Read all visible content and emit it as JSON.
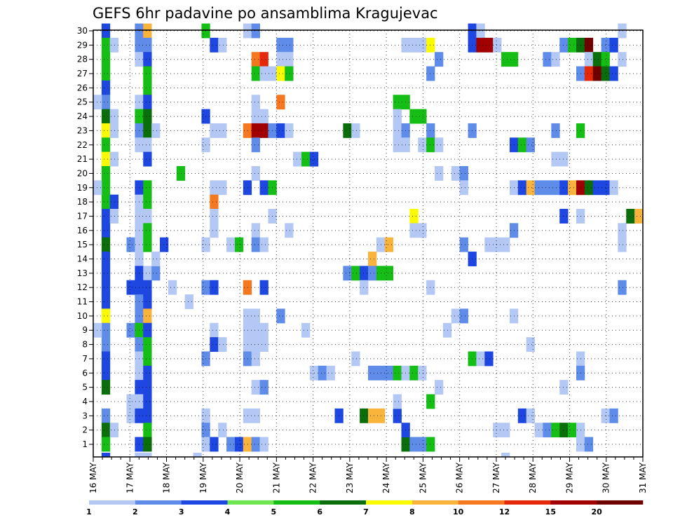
{
  "chart_data": {
    "type": "heatmap",
    "title": "GEFS 6hr padavine po ansamblima Kragujevac",
    "y_ticks": [
      "1",
      "2",
      "3",
      "4",
      "5",
      "6",
      "7",
      "8",
      "9",
      "10",
      "11",
      "12",
      "13",
      "14",
      "15",
      "16",
      "17",
      "18",
      "19",
      "20",
      "21",
      "22",
      "23",
      "24",
      "25",
      "26",
      "27",
      "28",
      "29",
      "30"
    ],
    "x_ticks": [
      "16 MAY",
      "17 MAY",
      "18 MAY",
      "19 MAY",
      "20 MAY",
      "21 MAY",
      "22 MAY",
      "23 MAY",
      "24 MAY",
      "25 MAY",
      "26 MAY",
      "27 MAY",
      "28 MAY",
      "29 MAY",
      "30 MAY",
      "31 MAY"
    ],
    "grid": true,
    "colorbar": {
      "labels": [
        "1",
        "2",
        "3",
        "4",
        "5",
        "6",
        "7",
        "8",
        "10",
        "12",
        "15",
        "20"
      ],
      "colors": [
        "#b4c8f5",
        "#5f8ce8",
        "#1e46e0",
        "#6ee650",
        "#14be14",
        "#0a6e0a",
        "#fafa00",
        "#fab43c",
        "#f5781e",
        "#e6280a",
        "#a00000",
        "#6e0000"
      ]
    },
    "cells": [
      [
        1,
        30,
        3
      ],
      [
        1,
        29,
        5
      ],
      [
        1,
        28,
        5
      ],
      [
        1,
        27,
        5
      ],
      [
        1,
        26,
        3
      ],
      [
        1,
        25,
        2
      ],
      [
        1,
        24,
        6
      ],
      [
        1,
        23,
        7
      ],
      [
        1,
        22,
        5
      ],
      [
        1,
        21,
        7
      ],
      [
        1,
        20,
        5
      ],
      [
        1,
        19,
        5
      ],
      [
        1,
        18,
        5
      ],
      [
        1,
        17,
        3
      ],
      [
        1,
        16,
        3
      ],
      [
        1,
        15,
        6
      ],
      [
        1,
        14,
        3
      ],
      [
        1,
        13,
        3
      ],
      [
        1,
        12,
        3
      ],
      [
        1,
        11,
        3
      ],
      [
        1,
        10,
        7
      ],
      [
        1,
        9,
        2
      ],
      [
        1,
        8,
        2
      ],
      [
        1,
        7,
        3
      ],
      [
        1,
        6,
        3
      ],
      [
        1,
        5,
        6
      ],
      [
        1,
        3,
        2
      ],
      [
        1,
        2,
        6
      ],
      [
        1,
        1,
        5
      ],
      [
        1,
        0,
        3
      ],
      [
        0,
        25,
        1
      ],
      [
        0,
        19,
        1
      ],
      [
        0,
        9,
        1
      ],
      [
        2,
        29,
        1
      ],
      [
        2,
        24,
        1
      ],
      [
        2,
        23,
        1
      ],
      [
        2,
        21,
        1
      ],
      [
        2,
        18,
        3
      ],
      [
        2,
        17,
        1
      ],
      [
        2,
        2,
        1
      ],
      [
        4,
        15,
        2
      ],
      [
        4,
        9,
        2
      ],
      [
        4,
        4,
        1
      ],
      [
        4,
        3,
        1
      ],
      [
        4,
        12,
        3
      ],
      [
        5,
        30,
        2
      ],
      [
        5,
        29,
        2
      ],
      [
        5,
        28,
        1
      ],
      [
        5,
        25,
        1
      ],
      [
        5,
        24,
        5
      ],
      [
        5,
        23,
        2
      ],
      [
        5,
        22,
        1
      ],
      [
        5,
        19,
        3
      ],
      [
        5,
        18,
        1
      ],
      [
        5,
        17,
        1
      ],
      [
        5,
        16,
        1
      ],
      [
        5,
        15,
        1
      ],
      [
        5,
        14,
        1
      ],
      [
        5,
        13,
        3
      ],
      [
        5,
        12,
        3
      ],
      [
        5,
        11,
        2
      ],
      [
        5,
        10,
        2
      ],
      [
        5,
        9,
        5
      ],
      [
        5,
        8,
        2
      ],
      [
        5,
        7,
        1
      ],
      [
        5,
        6,
        1
      ],
      [
        5,
        5,
        3
      ],
      [
        5,
        4,
        1
      ],
      [
        5,
        3,
        3
      ],
      [
        5,
        1,
        3
      ],
      [
        5,
        0,
        1
      ],
      [
        6,
        30,
        8
      ],
      [
        6,
        29,
        2
      ],
      [
        6,
        28,
        3
      ],
      [
        6,
        27,
        5
      ],
      [
        6,
        26,
        5
      ],
      [
        6,
        25,
        3
      ],
      [
        6,
        24,
        6
      ],
      [
        6,
        23,
        6
      ],
      [
        6,
        22,
        1
      ],
      [
        6,
        21,
        3
      ],
      [
        6,
        19,
        5
      ],
      [
        6,
        18,
        5
      ],
      [
        6,
        17,
        1
      ],
      [
        6,
        16,
        5
      ],
      [
        6,
        15,
        5
      ],
      [
        6,
        13,
        1
      ],
      [
        6,
        12,
        3
      ],
      [
        6,
        11,
        3
      ],
      [
        6,
        10,
        8
      ],
      [
        6,
        9,
        3
      ],
      [
        6,
        8,
        5
      ],
      [
        6,
        7,
        5
      ],
      [
        6,
        6,
        3
      ],
      [
        6,
        5,
        3
      ],
      [
        6,
        4,
        3
      ],
      [
        6,
        3,
        3
      ],
      [
        6,
        2,
        5
      ],
      [
        6,
        1,
        6
      ],
      [
        6,
        0,
        1
      ],
      [
        7,
        23,
        1
      ],
      [
        7,
        13,
        2
      ],
      [
        7,
        14,
        1
      ],
      [
        8,
        15,
        3
      ],
      [
        9,
        12,
        1
      ],
      [
        10,
        20,
        5
      ],
      [
        11,
        11,
        1
      ],
      [
        12,
        0,
        1
      ],
      [
        13,
        30,
        5
      ],
      [
        13,
        24,
        3
      ],
      [
        13,
        22,
        1
      ],
      [
        13,
        15,
        1
      ],
      [
        13,
        12,
        2
      ],
      [
        13,
        7,
        2
      ],
      [
        13,
        3,
        1
      ],
      [
        13,
        2,
        2
      ],
      [
        13,
        1,
        1
      ],
      [
        14,
        29,
        3
      ],
      [
        14,
        23,
        1
      ],
      [
        14,
        19,
        1
      ],
      [
        14,
        18,
        9
      ],
      [
        14,
        17,
        1
      ],
      [
        14,
        16,
        1
      ],
      [
        14,
        12,
        3
      ],
      [
        14,
        9,
        1
      ],
      [
        14,
        8,
        3
      ],
      [
        14,
        1,
        3
      ],
      [
        15,
        29,
        1
      ],
      [
        15,
        23,
        1
      ],
      [
        15,
        19,
        1
      ],
      [
        15,
        8,
        1
      ],
      [
        15,
        2,
        1
      ],
      [
        16,
        1,
        2
      ],
      [
        16,
        15,
        1
      ],
      [
        17,
        1,
        3
      ],
      [
        17,
        15,
        5
      ],
      [
        18,
        30,
        1
      ],
      [
        18,
        23,
        9
      ],
      [
        18,
        19,
        3
      ],
      [
        18,
        12,
        9
      ],
      [
        18,
        10,
        1
      ],
      [
        18,
        9,
        1
      ],
      [
        18,
        8,
        1
      ],
      [
        18,
        7,
        2
      ],
      [
        18,
        3,
        1
      ],
      [
        18,
        1,
        8
      ],
      [
        19,
        30,
        2
      ],
      [
        19,
        28,
        9
      ],
      [
        19,
        27,
        5
      ],
      [
        19,
        25,
        1
      ],
      [
        19,
        24,
        1
      ],
      [
        19,
        23,
        11
      ],
      [
        19,
        22,
        2
      ],
      [
        19,
        20,
        1
      ],
      [
        19,
        16,
        1
      ],
      [
        19,
        15,
        2
      ],
      [
        19,
        10,
        1
      ],
      [
        19,
        9,
        1
      ],
      [
        19,
        8,
        1
      ],
      [
        19,
        7,
        1
      ],
      [
        19,
        5,
        1
      ],
      [
        19,
        3,
        1
      ],
      [
        19,
        1,
        2
      ],
      [
        20,
        28,
        10
      ],
      [
        20,
        27,
        1
      ],
      [
        20,
        24,
        1
      ],
      [
        20,
        23,
        11
      ],
      [
        20,
        19,
        3
      ],
      [
        20,
        15,
        1
      ],
      [
        20,
        12,
        3
      ],
      [
        20,
        9,
        1
      ],
      [
        20,
        8,
        1
      ],
      [
        20,
        5,
        2
      ],
      [
        20,
        1,
        1
      ],
      [
        21,
        27,
        1
      ],
      [
        21,
        23,
        2
      ],
      [
        21,
        19,
        5
      ],
      [
        21,
        17,
        1
      ],
      [
        22,
        29,
        2
      ],
      [
        22,
        28,
        1
      ],
      [
        22,
        27,
        7
      ],
      [
        22,
        25,
        9
      ],
      [
        22,
        23,
        3
      ],
      [
        22,
        10,
        2
      ],
      [
        23,
        29,
        2
      ],
      [
        23,
        28,
        1
      ],
      [
        23,
        27,
        5
      ],
      [
        23,
        23,
        1
      ],
      [
        23,
        16,
        1
      ],
      [
        24,
        21,
        1
      ],
      [
        25,
        21,
        5
      ],
      [
        25,
        9,
        1
      ],
      [
        26,
        21,
        3
      ],
      [
        26,
        6,
        1
      ],
      [
        27,
        6,
        2
      ],
      [
        28,
        6,
        1
      ],
      [
        29,
        3,
        3
      ],
      [
        30,
        23,
        6
      ],
      [
        30,
        13,
        2
      ],
      [
        31,
        23,
        1
      ],
      [
        31,
        13,
        5
      ],
      [
        31,
        7,
        1
      ],
      [
        32,
        13,
        3
      ],
      [
        32,
        12,
        1
      ],
      [
        32,
        3,
        6
      ],
      [
        33,
        14,
        8
      ],
      [
        33,
        13,
        2
      ],
      [
        33,
        3,
        8
      ],
      [
        33,
        6,
        2
      ],
      [
        34,
        15,
        1
      ],
      [
        34,
        13,
        5
      ],
      [
        34,
        3,
        8
      ],
      [
        34,
        6,
        2
      ],
      [
        35,
        15,
        8
      ],
      [
        35,
        13,
        5
      ],
      [
        35,
        6,
        2
      ],
      [
        36,
        25,
        5
      ],
      [
        36,
        24,
        1
      ],
      [
        36,
        23,
        1
      ],
      [
        36,
        22,
        1
      ],
      [
        36,
        6,
        5
      ],
      [
        36,
        3,
        3
      ],
      [
        36,
        4,
        1
      ],
      [
        37,
        29,
        1
      ],
      [
        37,
        25,
        5
      ],
      [
        37,
        23,
        2
      ],
      [
        37,
        22,
        1
      ],
      [
        37,
        1,
        6
      ],
      [
        37,
        2,
        3
      ],
      [
        37,
        6,
        1
      ],
      [
        38,
        29,
        1
      ],
      [
        38,
        24,
        5
      ],
      [
        38,
        17,
        7
      ],
      [
        38,
        16,
        1
      ],
      [
        38,
        6,
        5
      ],
      [
        38,
        1,
        2
      ],
      [
        39,
        29,
        1
      ],
      [
        39,
        24,
        5
      ],
      [
        39,
        22,
        1
      ],
      [
        39,
        16,
        1
      ],
      [
        39,
        6,
        1
      ],
      [
        39,
        1,
        2
      ],
      [
        40,
        29,
        7
      ],
      [
        40,
        27,
        2
      ],
      [
        40,
        23,
        2
      ],
      [
        40,
        22,
        5
      ],
      [
        40,
        12,
        1
      ],
      [
        40,
        4,
        5
      ],
      [
        40,
        1,
        5
      ],
      [
        41,
        28,
        2
      ],
      [
        41,
        22,
        1
      ],
      [
        41,
        20,
        1
      ],
      [
        41,
        5,
        1
      ],
      [
        42,
        9,
        1
      ],
      [
        43,
        20,
        1
      ],
      [
        43,
        10,
        1
      ],
      [
        44,
        20,
        2
      ],
      [
        44,
        19,
        1
      ],
      [
        44,
        15,
        2
      ],
      [
        44,
        10,
        2
      ],
      [
        45,
        30,
        3
      ],
      [
        45,
        29,
        3
      ],
      [
        45,
        23,
        2
      ],
      [
        45,
        14,
        3
      ],
      [
        45,
        7,
        5
      ],
      [
        46,
        30,
        1
      ],
      [
        46,
        29,
        11
      ],
      [
        46,
        7,
        1
      ],
      [
        47,
        29,
        11
      ],
      [
        47,
        15,
        1
      ],
      [
        47,
        7,
        3
      ],
      [
        48,
        29,
        1
      ],
      [
        48,
        15,
        1
      ],
      [
        48,
        2,
        1
      ],
      [
        49,
        28,
        5
      ],
      [
        49,
        15,
        1
      ],
      [
        49,
        2,
        1
      ],
      [
        49,
        0,
        1
      ],
      [
        50,
        28,
        5
      ],
      [
        50,
        22,
        3
      ],
      [
        50,
        19,
        1
      ],
      [
        50,
        16,
        2
      ],
      [
        50,
        10,
        1
      ],
      [
        51,
        22,
        5
      ],
      [
        51,
        19,
        3
      ],
      [
        51,
        3,
        3
      ],
      [
        52,
        22,
        2
      ],
      [
        52,
        19,
        8
      ],
      [
        52,
        3,
        1
      ],
      [
        52,
        8,
        1
      ],
      [
        53,
        19,
        2
      ],
      [
        53,
        2,
        1
      ],
      [
        54,
        28,
        2
      ],
      [
        54,
        19,
        2
      ],
      [
        54,
        2,
        2
      ],
      [
        55,
        28,
        1
      ],
      [
        55,
        23,
        2
      ],
      [
        55,
        21,
        1
      ],
      [
        55,
        19,
        2
      ],
      [
        55,
        2,
        5
      ],
      [
        56,
        29,
        2
      ],
      [
        56,
        21,
        1
      ],
      [
        56,
        19,
        3
      ],
      [
        56,
        17,
        3
      ],
      [
        56,
        5,
        1
      ],
      [
        56,
        2,
        6
      ],
      [
        57,
        29,
        5
      ],
      [
        57,
        19,
        8
      ],
      [
        57,
        2,
        5
      ],
      [
        58,
        29,
        6
      ],
      [
        58,
        27,
        2
      ],
      [
        58,
        23,
        5
      ],
      [
        58,
        19,
        11
      ],
      [
        58,
        17,
        1
      ],
      [
        58,
        7,
        1
      ],
      [
        58,
        6,
        2
      ],
      [
        58,
        2,
        1
      ],
      [
        58,
        1,
        1
      ],
      [
        59,
        29,
        12
      ],
      [
        59,
        28,
        1
      ],
      [
        59,
        27,
        10
      ],
      [
        59,
        19,
        6
      ],
      [
        59,
        1,
        2
      ],
      [
        60,
        28,
        6
      ],
      [
        60,
        27,
        12
      ],
      [
        60,
        19,
        3
      ],
      [
        61,
        29,
        2
      ],
      [
        61,
        28,
        5
      ],
      [
        61,
        27,
        6
      ],
      [
        61,
        19,
        3
      ],
      [
        61,
        3,
        1
      ],
      [
        62,
        29,
        3
      ],
      [
        62,
        27,
        3
      ],
      [
        62,
        19,
        1
      ],
      [
        62,
        3,
        2
      ],
      [
        63,
        30,
        1
      ],
      [
        63,
        28,
        1
      ],
      [
        63,
        16,
        1
      ],
      [
        63,
        15,
        1
      ],
      [
        63,
        12,
        2
      ],
      [
        64,
        17,
        6
      ],
      [
        65,
        17,
        8
      ]
    ]
  }
}
